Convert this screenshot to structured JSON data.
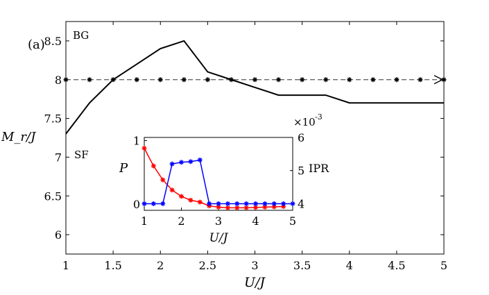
{
  "chart_data": [
    {
      "name": "main",
      "type": "line",
      "panel_label": "(a)",
      "xlabel": "U/J",
      "ylabel": "M_r/J",
      "xlim": [
        1,
        5
      ],
      "ylim": [
        5.75,
        8.75
      ],
      "xticks": [
        1,
        1.5,
        2,
        2.5,
        3,
        3.5,
        4,
        4.5,
        5
      ],
      "xtick_labels": [
        "1",
        "1.5",
        "2",
        "2.5",
        "3",
        "3.5",
        "4",
        "4.5",
        "5"
      ],
      "yticks": [
        6,
        6.5,
        7,
        7.5,
        8,
        8.5
      ],
      "ytick_labels": [
        "6",
        "6.5",
        "7",
        "7.5",
        "8",
        "8.5"
      ],
      "annotations": [
        "BG",
        "SF"
      ],
      "series": [
        {
          "name": "M_r/J",
          "color": "#000000",
          "style": "solid",
          "x": [
            1,
            1.25,
            1.5,
            1.75,
            2,
            2.25,
            2.5,
            2.75,
            3,
            3.25,
            3.5,
            3.75,
            4,
            4.25,
            4.5,
            4.75,
            5
          ],
          "y": [
            7.3,
            7.7,
            8.0,
            8.2,
            8.4,
            8.5,
            8.1,
            8.0,
            7.9,
            7.8,
            7.8,
            7.8,
            7.7,
            7.7,
            7.7,
            7.7,
            7.7
          ]
        },
        {
          "name": "reference 8",
          "color": "#000000",
          "style": "dashed-markers",
          "x": [
            1,
            1.25,
            1.5,
            1.75,
            2,
            2.25,
            2.5,
            2.75,
            3,
            3.25,
            3.5,
            3.75,
            4,
            4.25,
            4.5,
            4.75,
            5
          ],
          "y": [
            8,
            8,
            8,
            8,
            8,
            8,
            8,
            8,
            8,
            8,
            8,
            8,
            8,
            8,
            8,
            8,
            8
          ]
        }
      ]
    },
    {
      "name": "inset",
      "type": "line",
      "xlabel": "U/J",
      "ylabel_left": "P",
      "ylabel_right": "IPR",
      "exponent_label": "×10",
      "exponent_power": "-3",
      "xlim": [
        1,
        5
      ],
      "xticks": [
        1,
        2,
        3,
        4,
        5
      ],
      "xtick_labels": [
        "1",
        "2",
        "3",
        "4",
        "5"
      ],
      "ylim_left": [
        -0.1,
        1.05
      ],
      "yticks_left": [
        0,
        1
      ],
      "ytick_labels_left": [
        "0",
        "1"
      ],
      "ylim_right": [
        3.8,
        6.0
      ],
      "yticks_right": [
        4,
        5,
        6
      ],
      "ytick_labels_right": [
        "4",
        "5",
        "6"
      ],
      "series": [
        {
          "name": "P",
          "axis": "left",
          "color": "#ff0000",
          "x": [
            1,
            1.25,
            1.5,
            1.75,
            2,
            2.25,
            2.5,
            2.75,
            3,
            3.25,
            3.5,
            3.75,
            4,
            4.25,
            4.5,
            4.75
          ],
          "y": [
            0.88,
            0.6,
            0.38,
            0.22,
            0.12,
            0.06,
            0.03,
            -0.03,
            -0.05,
            -0.06,
            -0.06,
            -0.06,
            -0.055,
            -0.05,
            -0.045,
            -0.04
          ]
        },
        {
          "name": "IPR",
          "axis": "right",
          "color": "#0000ff",
          "x": [
            1,
            1.25,
            1.5,
            1.75,
            2,
            2.25,
            2.5,
            2.75,
            3,
            3.25,
            3.5,
            3.75,
            4,
            4.25,
            4.5,
            4.75,
            5
          ],
          "y": [
            4.0,
            4.0,
            4.0,
            5.2,
            5.25,
            5.27,
            5.32,
            4.0,
            4.0,
            4.0,
            4.0,
            4.0,
            4.0,
            4.0,
            4.0,
            4.0,
            4.0
          ]
        }
      ]
    }
  ]
}
